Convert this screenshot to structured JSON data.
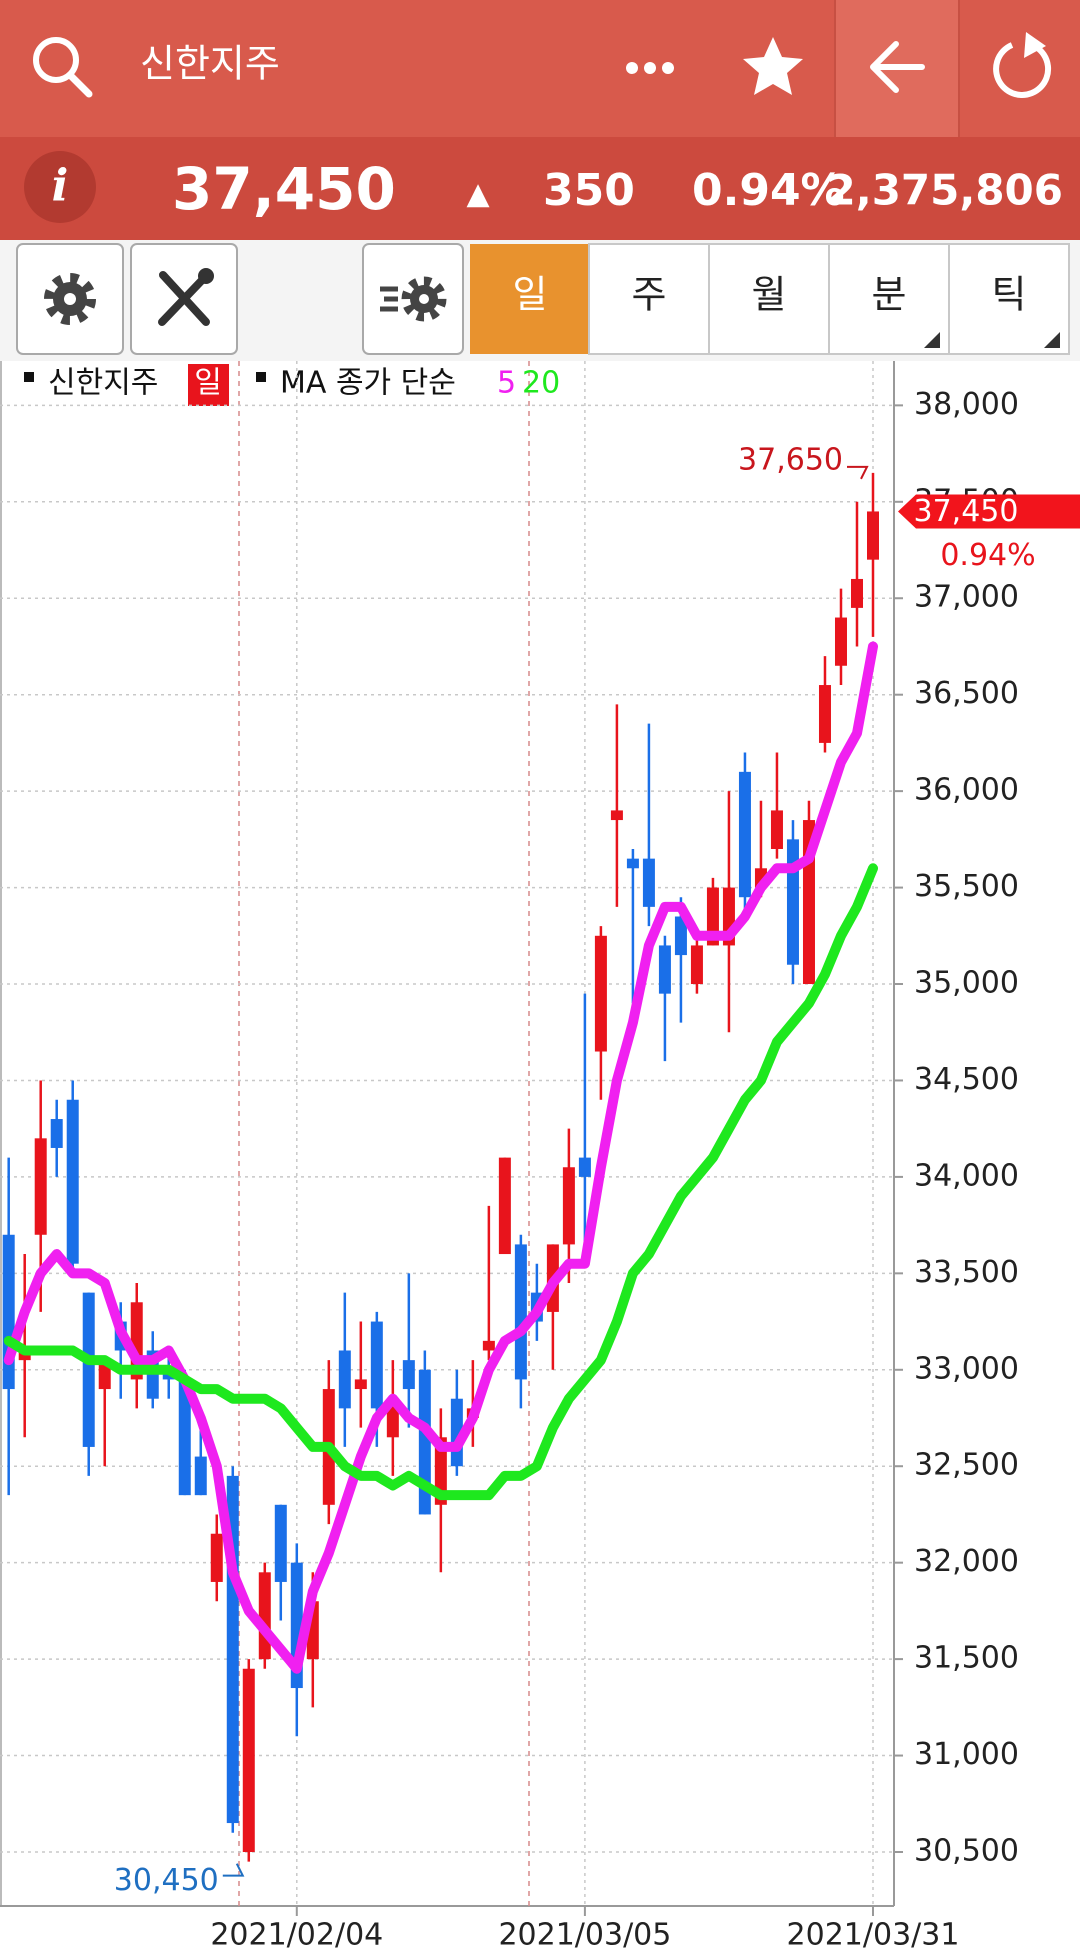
{
  "header": {
    "title": "신한지주",
    "info": "i",
    "price": "37,450",
    "arrow": "▲",
    "change": "350",
    "rate": "0.94%",
    "volume": "2,375,806"
  },
  "tabs": [
    "일",
    "주",
    "월",
    "분",
    "틱"
  ],
  "chart_data": {
    "type": "candlestick",
    "period": "일",
    "ma_label": "MA 종가 단순",
    "categories": [
      null,
      null,
      null,
      null,
      null,
      null,
      null,
      null,
      null,
      null,
      null,
      null,
      null,
      null,
      null,
      null,
      null,
      null,
      "2021/02/04",
      null,
      null,
      null,
      null,
      null,
      null,
      null,
      null,
      null,
      null,
      null,
      null,
      null,
      null,
      null,
      null,
      null,
      "2021/03/05",
      null,
      null,
      null,
      null,
      null,
      null,
      null,
      null,
      null,
      null,
      null,
      null,
      null,
      null,
      null,
      null,
      null,
      "2021/03/31"
    ],
    "series": [
      {
        "name": "신한지주",
        "type": "candlestick",
        "up_color": "#e8141c",
        "down_color": "#1a6fe8",
        "open": [
          33700,
          33050,
          33700,
          34300,
          34400,
          33400,
          32900,
          33250,
          32950,
          33100,
          33000,
          32950,
          32550,
          31900,
          32450,
          30500,
          31500,
          32300,
          32000,
          31500,
          32300,
          33100,
          32900,
          33250,
          32650,
          33050,
          33000,
          32300,
          32850,
          32750,
          33100,
          33600,
          33650,
          33400,
          33300,
          33650,
          34100,
          34650,
          35850,
          35650,
          35650,
          35200,
          35350,
          35000,
          35200,
          35200,
          36100,
          35500,
          35700,
          35750,
          35000,
          36250,
          36650,
          36950,
          37200
        ],
        "high": [
          34100,
          33600,
          34500,
          34400,
          34500,
          33400,
          33050,
          33350,
          33450,
          33200,
          33100,
          33000,
          32750,
          32250,
          32500,
          31500,
          32000,
          32300,
          32100,
          31950,
          33050,
          33400,
          33250,
          33300,
          33050,
          33500,
          33100,
          32800,
          33000,
          33050,
          33850,
          34100,
          33700,
          33550,
          33650,
          34250,
          34950,
          35300,
          36450,
          35700,
          36350,
          35250,
          35450,
          35250,
          35550,
          36000,
          36200,
          35950,
          36200,
          35850,
          35950,
          36700,
          37050,
          37500,
          37650
        ],
        "low": [
          32350,
          32650,
          33300,
          34000,
          33500,
          32450,
          32500,
          32850,
          32800,
          32800,
          32850,
          32350,
          32350,
          31800,
          30600,
          30450,
          31450,
          31700,
          31100,
          31250,
          32200,
          32600,
          32700,
          32600,
          32450,
          32700,
          32250,
          31950,
          32450,
          32600,
          33050,
          33600,
          32800,
          33150,
          33000,
          33450,
          33650,
          34400,
          35400,
          34900,
          35300,
          34600,
          34800,
          34950,
          35200,
          34750,
          35350,
          35450,
          35650,
          35000,
          35000,
          36200,
          36550,
          36750,
          36800
        ],
        "close": [
          32900,
          33100,
          34200,
          34150,
          33550,
          32600,
          33050,
          33100,
          33350,
          32850,
          32950,
          32350,
          32350,
          32150,
          30650,
          31450,
          31950,
          31900,
          31350,
          31800,
          32900,
          32800,
          32950,
          32800,
          32850,
          32900,
          32250,
          32650,
          32500,
          32800,
          33150,
          34100,
          32950,
          33250,
          33650,
          34050,
          34000,
          35250,
          35900,
          35600,
          35400,
          34950,
          35150,
          35200,
          35500,
          35500,
          35450,
          35600,
          35900,
          35100,
          35850,
          36550,
          36900,
          37100,
          37450
        ]
      },
      {
        "name": "5",
        "type": "line",
        "color": "#f020f0",
        "values": [
          33050,
          33300,
          33500,
          33600,
          33500,
          33500,
          33450,
          33200,
          33050,
          33050,
          33100,
          32950,
          32750,
          32500,
          31950,
          31750,
          31650,
          31550,
          31450,
          31850,
          32050,
          32300,
          32550,
          32750,
          32850,
          32750,
          32700,
          32600,
          32600,
          32750,
          33000,
          33150,
          33200,
          33300,
          33450,
          33550,
          33550,
          34050,
          34500,
          34800,
          35200,
          35400,
          35400,
          35250,
          35250,
          35250,
          35350,
          35500,
          35600,
          35600,
          35650,
          35900,
          36150,
          36300,
          36750
        ]
      },
      {
        "name": "20",
        "type": "line",
        "color": "#1ee81e",
        "values": [
          33150,
          33100,
          33100,
          33100,
          33100,
          33050,
          33050,
          33000,
          33000,
          33000,
          33000,
          32950,
          32900,
          32900,
          32850,
          32850,
          32850,
          32800,
          32700,
          32600,
          32600,
          32500,
          32450,
          32450,
          32400,
          32450,
          32400,
          32350,
          32350,
          32350,
          32350,
          32450,
          32450,
          32500,
          32700,
          32850,
          32950,
          33050,
          33250,
          33500,
          33600,
          33750,
          33900,
          34000,
          34100,
          34250,
          34400,
          34500,
          34700,
          34800,
          34900,
          35050,
          35250,
          35400,
          35600
        ]
      }
    ],
    "ylim": [
      30220,
      38230
    ],
    "yticks": [
      {
        "value": 30500,
        "label": "30,500"
      },
      {
        "value": 31000,
        "label": "31,000"
      },
      {
        "value": 31500,
        "label": "31,500"
      },
      {
        "value": 32000,
        "label": "32,000"
      },
      {
        "value": 32500,
        "label": "32,500"
      },
      {
        "value": 33000,
        "label": "33,000"
      },
      {
        "value": 33500,
        "label": "33,500"
      },
      {
        "value": 34000,
        "label": "34,000"
      },
      {
        "value": 34500,
        "label": "34,500"
      },
      {
        "value": 35000,
        "label": "35,000"
      },
      {
        "value": 35500,
        "label": "35,500"
      },
      {
        "value": 36000,
        "label": "36,000"
      },
      {
        "value": 36500,
        "label": "36,500"
      },
      {
        "value": 37000,
        "label": "37,000"
      },
      {
        "value": 37500,
        "label": "37,500"
      },
      {
        "value": 38000,
        "label": "38,000"
      }
    ],
    "grid": true,
    "max_label": {
      "value": 37650,
      "label": "37,650"
    },
    "min_label": {
      "value": 30450,
      "label": "30,450"
    },
    "last_label": {
      "value": 37450,
      "label": "37,450"
    },
    "change_label": "0.94%"
  }
}
